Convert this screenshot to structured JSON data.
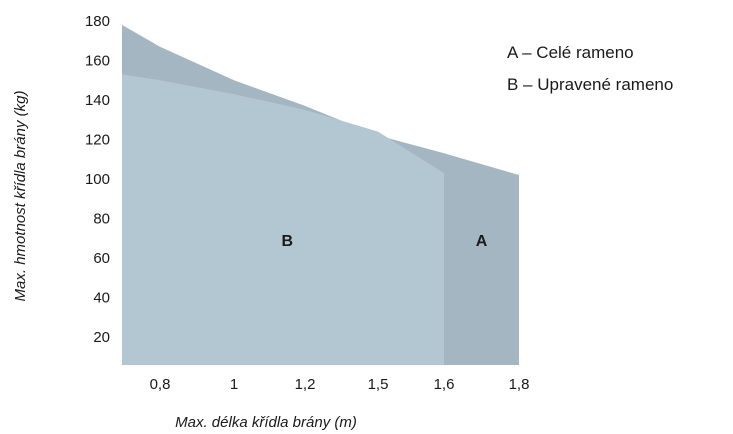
{
  "chart_data": {
    "type": "area",
    "title": "",
    "xlabel": "Max. délka křídla brány (m)",
    "ylabel": "Max. hmotnost křídla brány (kg)",
    "x_tick_labels": [
      "0,8",
      "1",
      "1,2",
      "1,5",
      "1,6",
      "1,8"
    ],
    "y_ticks": [
      20,
      40,
      60,
      80,
      100,
      120,
      140,
      160,
      180
    ],
    "ylim": [
      10,
      180
    ],
    "grid": false,
    "series": [
      {
        "name": "A – Celé rameno",
        "label": "A",
        "color": "#a3b6c2",
        "x": [
          0.7,
          0.8,
          1.0,
          1.2,
          1.5,
          1.6,
          1.8
        ],
        "y": [
          178,
          167,
          150,
          137,
          122,
          113,
          102
        ]
      },
      {
        "name": "B – Upravené rameno",
        "label": "B",
        "color": "#b3c7d3",
        "x": [
          0.7,
          0.8,
          1.0,
          1.2,
          1.5,
          1.6
        ],
        "y": [
          153,
          150,
          143,
          135,
          124,
          103
        ]
      }
    ],
    "legend": {
      "position": "top-right",
      "entries": [
        "A – Celé rameno",
        "B – Upravené rameno"
      ]
    }
  }
}
